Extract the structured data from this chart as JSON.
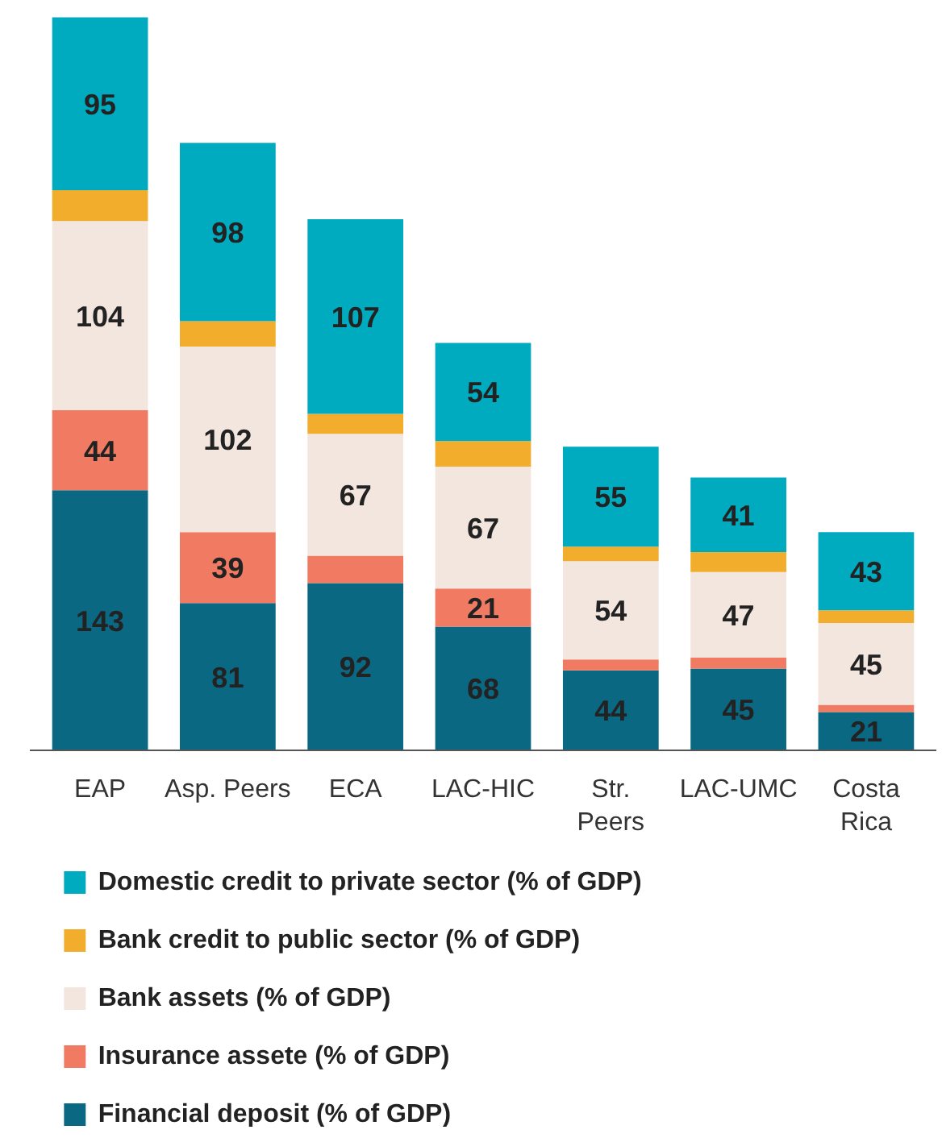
{
  "chart_data": {
    "type": "bar",
    "stacked": true,
    "legend": "bottom",
    "categories": [
      "EAP",
      "Asp. Peers",
      "ECA",
      "LAC-HIC",
      "Str.\nPeers",
      "LAC-UMC",
      "Costa\nRica"
    ],
    "series": [
      {
        "name": "Financial deposit (% of GDP)",
        "color": "#0b6882",
        "values": [
          143,
          81,
          92,
          68,
          44,
          45,
          21
        ],
        "value_labels": [
          "143",
          "81",
          "92",
          "68",
          "44",
          "45",
          "21"
        ]
      },
      {
        "name": "Insurance assete (% of GDP)",
        "color": "#f07a62",
        "values": [
          44,
          39,
          15,
          21,
          6,
          6,
          4
        ],
        "value_labels": [
          "44",
          "39",
          null,
          "21",
          null,
          null,
          null
        ]
      },
      {
        "name": "Bank assets (% of GDP)",
        "color": "#f3e6df",
        "values": [
          104,
          102,
          67,
          67,
          54,
          47,
          45
        ],
        "value_labels": [
          "104",
          "102",
          "67",
          "67",
          "54",
          "47",
          "45"
        ]
      },
      {
        "name": "Bank credit to public sector (% of GDP)",
        "color": "#f2ad2c",
        "values": [
          17,
          14,
          11,
          14,
          8,
          11,
          7
        ],
        "value_labels": [
          null,
          null,
          null,
          null,
          null,
          null,
          null
        ]
      },
      {
        "name": "Domestic credit to private sector (% of GDP)",
        "color": "#00aabf",
        "values": [
          95,
          98,
          107,
          54,
          55,
          41,
          43
        ],
        "value_labels": [
          "95",
          "98",
          "107",
          "54",
          "55",
          "41",
          "43"
        ]
      }
    ]
  }
}
